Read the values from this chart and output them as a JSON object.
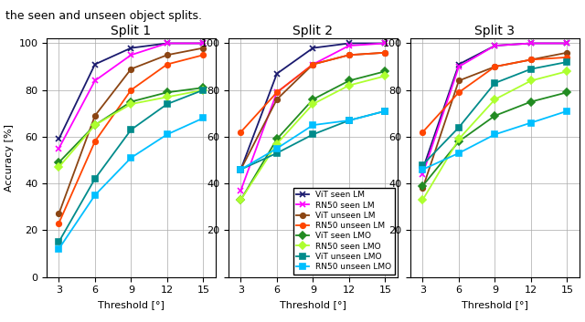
{
  "x": [
    3,
    6,
    9,
    12,
    15
  ],
  "splits": [
    "Split 1",
    "Split 2",
    "Split 3"
  ],
  "header_text": "the seen and unseen object splits.",
  "series": {
    "ViT seen LM": {
      "color": "#1a1a6e",
      "marker": "x",
      "split1": [
        59,
        91,
        98,
        100,
        100
      ],
      "split2": [
        46,
        87,
        98,
        100,
        100
      ],
      "split3": [
        46,
        91,
        99,
        100,
        100
      ]
    },
    "RN50 seen LM": {
      "color": "#ff00ff",
      "marker": "x",
      "split1": [
        55,
        84,
        95,
        100,
        100
      ],
      "split2": [
        37,
        79,
        91,
        99,
        100
      ],
      "split3": [
        44,
        90,
        99,
        100,
        100
      ]
    },
    "ViT unseen LM": {
      "color": "#8B4513",
      "marker": "o",
      "split1": [
        27,
        69,
        89,
        95,
        98
      ],
      "split2": [
        46,
        76,
        91,
        95,
        96
      ],
      "split3": [
        38,
        84,
        90,
        93,
        96
      ]
    },
    "RN50 unseen LM": {
      "color": "#ff4500",
      "marker": "o",
      "split1": [
        23,
        58,
        80,
        91,
        95
      ],
      "split2": [
        62,
        79,
        91,
        95,
        96
      ],
      "split3": [
        62,
        79,
        90,
        93,
        94
      ]
    },
    "ViT seen LMO": {
      "color": "#228B22",
      "marker": "D",
      "split1": [
        49,
        65,
        75,
        79,
        81
      ],
      "split2": [
        33,
        59,
        76,
        84,
        88
      ],
      "split3": [
        39,
        58,
        69,
        75,
        79
      ]
    },
    "RN50 seen LMO": {
      "color": "#adff2f",
      "marker": "D",
      "split1": [
        47,
        65,
        74,
        77,
        80
      ],
      "split2": [
        33,
        57,
        74,
        82,
        86
      ],
      "split3": [
        33,
        59,
        76,
        84,
        88
      ]
    },
    "ViT unseen LMO": {
      "color": "#008B8B",
      "marker": "s",
      "split1": [
        15,
        42,
        63,
        74,
        80
      ],
      "split2": [
        46,
        53,
        61,
        67,
        71
      ],
      "split3": [
        48,
        64,
        83,
        89,
        92
      ]
    },
    "RN50 unseen LMO": {
      "color": "#00bfff",
      "marker": "s",
      "split1": [
        12,
        35,
        51,
        61,
        68
      ],
      "split2": [
        46,
        55,
        65,
        67,
        71
      ],
      "split3": [
        46,
        53,
        61,
        66,
        71
      ]
    }
  },
  "ylim": [
    0,
    102
  ],
  "yticks": [
    0,
    20,
    40,
    60,
    80,
    100
  ],
  "xticks": [
    3,
    6,
    9,
    12,
    15
  ],
  "ylabel": "Accuracy [%]",
  "xlabel": "Threshold [°]"
}
